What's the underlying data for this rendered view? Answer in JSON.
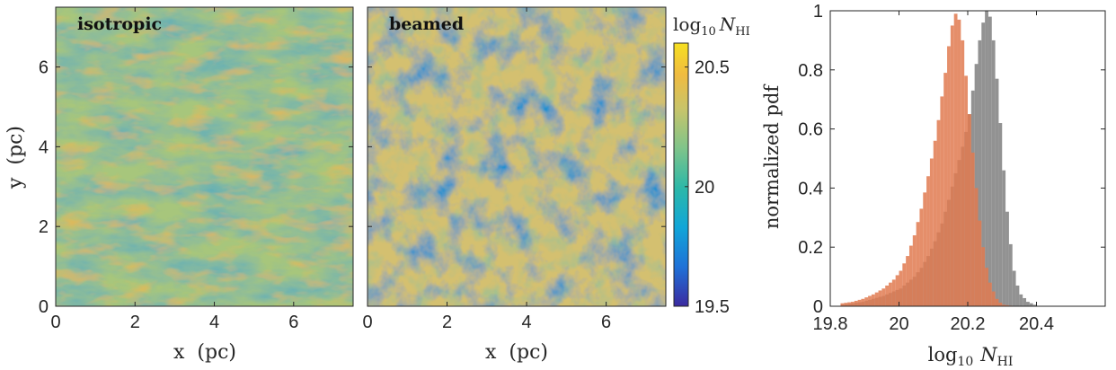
{
  "chart_data": [
    {
      "type": "heatmap",
      "panel": "left",
      "label": "isotropic",
      "xlabel": "x (pc)",
      "ylabel": "y (pc)",
      "xlim": [
        0,
        7.5
      ],
      "ylim": [
        0,
        7.5
      ],
      "xticks": [
        0,
        2,
        4,
        6
      ],
      "yticks": [
        0,
        2,
        4,
        6
      ],
      "value_range": [
        19.5,
        20.6
      ],
      "typical_value": 20.22,
      "description_stats": {
        "low": 19.9,
        "high": 20.45
      }
    },
    {
      "type": "heatmap",
      "panel": "middle",
      "label": "beamed",
      "xlabel": "x (pc)",
      "xlim": [
        0,
        7.5
      ],
      "ylim": [
        0,
        7.5
      ],
      "xticks": [
        0,
        2,
        4,
        6
      ],
      "value_range": [
        19.5,
        20.6
      ],
      "typical_value": 20.17,
      "colorbar": {
        "title": "log10 NHI",
        "ticks": [
          19.5,
          20,
          20.5
        ],
        "range": [
          19.5,
          20.6
        ]
      }
    },
    {
      "type": "bar",
      "panel": "right",
      "xlabel": "log10 NHI",
      "ylabel": "normalized pdf",
      "xlim": [
        19.8,
        20.6
      ],
      "ylim": [
        0,
        1
      ],
      "xticks": [
        19.8,
        20,
        20.2,
        20.4
      ],
      "yticks": [
        0,
        0.2,
        0.4,
        0.6,
        0.8,
        1
      ],
      "bin_width": 0.01,
      "series": [
        {
          "color": "#8c8c8c",
          "x": [
            19.83,
            19.86,
            19.89,
            19.92,
            19.95,
            19.98,
            20.0,
            20.02,
            20.04,
            20.06,
            20.08,
            20.1,
            20.12,
            20.14,
            20.16,
            20.18,
            20.19,
            20.2,
            20.21,
            20.22,
            20.23,
            20.24,
            20.25,
            20.26,
            20.27,
            20.28,
            20.29,
            20.3,
            20.31,
            20.32,
            20.33,
            20.34,
            20.35,
            20.37,
            20.39
          ],
          "values": [
            0.005,
            0.01,
            0.015,
            0.025,
            0.035,
            0.05,
            0.06,
            0.08,
            0.1,
            0.13,
            0.17,
            0.22,
            0.28,
            0.36,
            0.45,
            0.54,
            0.59,
            0.65,
            0.73,
            0.82,
            0.9,
            0.96,
            1.0,
            0.98,
            0.9,
            0.77,
            0.62,
            0.46,
            0.32,
            0.21,
            0.12,
            0.07,
            0.04,
            0.015,
            0.005
          ]
        },
        {
          "color": "#e07a50",
          "x": [
            19.83,
            19.86,
            19.89,
            19.92,
            19.95,
            19.98,
            20.0,
            20.02,
            20.04,
            20.06,
            20.08,
            20.09,
            20.1,
            20.11,
            20.12,
            20.13,
            20.14,
            20.15,
            20.16,
            20.17,
            20.18,
            20.19,
            20.2,
            20.21,
            20.22,
            20.23,
            20.24,
            20.25,
            20.26,
            20.27,
            20.28,
            20.29,
            20.3,
            20.32
          ],
          "values": [
            0.01,
            0.015,
            0.025,
            0.04,
            0.06,
            0.09,
            0.12,
            0.17,
            0.24,
            0.33,
            0.44,
            0.5,
            0.56,
            0.63,
            0.71,
            0.79,
            0.88,
            0.95,
            0.99,
            0.97,
            0.9,
            0.78,
            0.65,
            0.52,
            0.4,
            0.29,
            0.2,
            0.13,
            0.08,
            0.05,
            0.025,
            0.012,
            0.005,
            0.002
          ]
        }
      ]
    }
  ],
  "colormap": [
    "#3b2aa0",
    "#1f72d8",
    "#11a6d8",
    "#2cb8a8",
    "#7fc48a",
    "#c8c46a",
    "#f0bb40",
    "#f6e020"
  ],
  "tick_labels": {
    "x": [
      "0",
      "2",
      "4",
      "6"
    ],
    "y": [
      "0",
      "2",
      "4",
      "6"
    ],
    "colorbar": [
      "19.5",
      "20",
      "20.5"
    ],
    "hist_x": [
      "19.8",
      "20",
      "20.2",
      "20.4"
    ],
    "hist_y": [
      "0",
      "0.2",
      "0.4",
      "0.6",
      "0.8",
      "1"
    ]
  },
  "texts": {
    "isotropic": "isotropic",
    "beamed": "beamed",
    "xlabel_left": "x  (pc)",
    "xlabel_mid": "x  (pc)",
    "ylabel_left": "y  (pc)",
    "cb_log": "log",
    "cb_sub": "10",
    "cb_N": "N",
    "cb_HI": "HI",
    "hist_ylabel": "normalized pdf",
    "hist_log": "log",
    "hist_sub": "10",
    "hist_N": "N",
    "hist_HI": "HI"
  }
}
